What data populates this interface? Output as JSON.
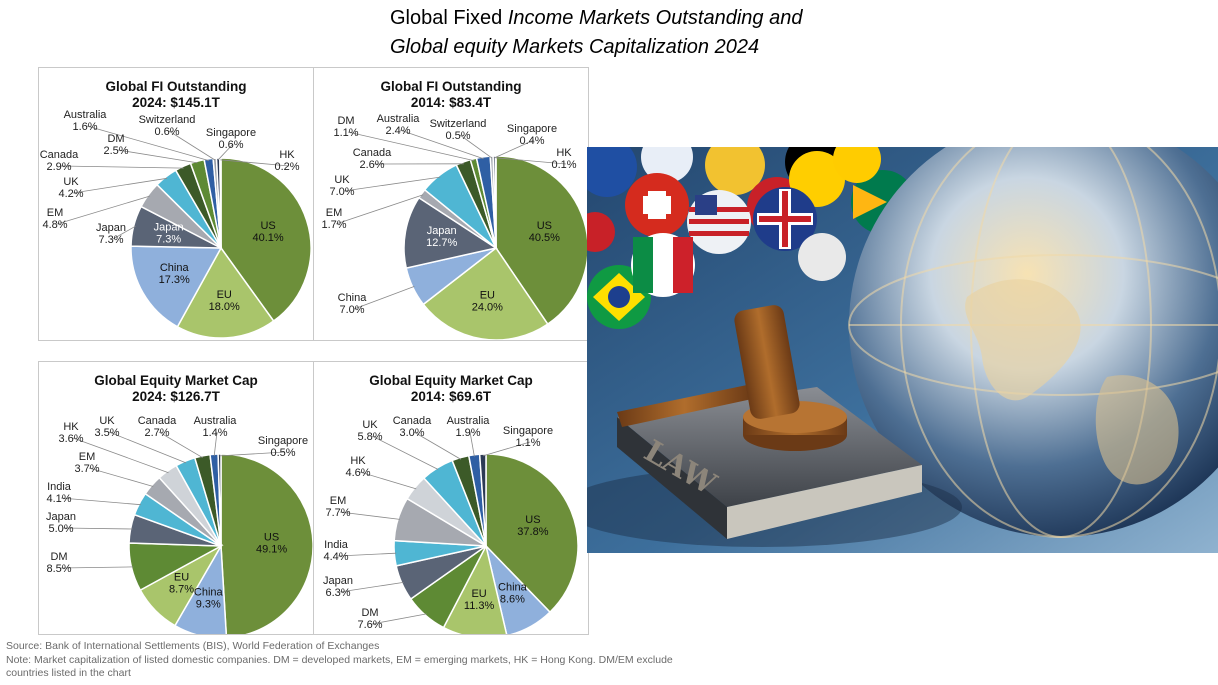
{
  "page_title": {
    "line1_plain": "Global Fixed ",
    "line1_italic": "Income Markets Outstanding and",
    "line2_italic": "Global equity Markets Capitalization 2024"
  },
  "colors": {
    "US": "#6d8f3a",
    "EU": "#a9c56b",
    "China": "#8fb0dc",
    "Japan": "#5a6476",
    "EM": "#a6a9b0",
    "UK": "#4fb6d3",
    "Canada": "#3c5a28",
    "DM": "#5e8a34",
    "Australia": "#2f5fa4",
    "Switzerland": "#9aa0a8",
    "Singapore": "#2c3a55",
    "HK": "#cfd3d8",
    "India": "#4fb6d3"
  },
  "chart_data": [
    {
      "type": "pie",
      "title": "Global FI Outstanding",
      "subtitle": "2024: $145.1T",
      "slices": [
        {
          "label": "US",
          "value": 40.1,
          "display": "40.1%"
        },
        {
          "label": "EU",
          "value": 18.0,
          "display": "18.0%"
        },
        {
          "label": "China",
          "value": 17.3,
          "display": "17.3%"
        },
        {
          "label": "Japan",
          "value": 7.3,
          "display": "7.3%"
        },
        {
          "label": "EM",
          "value": 4.8,
          "display": "4.8%"
        },
        {
          "label": "UK",
          "value": 4.2,
          "display": "4.2%"
        },
        {
          "label": "Canada",
          "value": 2.9,
          "display": "2.9%"
        },
        {
          "label": "DM",
          "value": 2.5,
          "display": "2.5%"
        },
        {
          "label": "Australia",
          "value": 1.6,
          "display": "1.6%"
        },
        {
          "label": "Switzerland",
          "value": 0.6,
          "display": "0.6%"
        },
        {
          "label": "Singapore",
          "value": 0.6,
          "display": "0.6%"
        },
        {
          "label": "HK",
          "value": 0.2,
          "display": "0.2%"
        }
      ]
    },
    {
      "type": "pie",
      "title": "Global FI Outstanding",
      "subtitle": "2014: $83.4T",
      "slices": [
        {
          "label": "US",
          "value": 40.5,
          "display": "40.5%"
        },
        {
          "label": "EU",
          "value": 24.0,
          "display": "24.0%"
        },
        {
          "label": "China",
          "value": 7.0,
          "display": "7.0%"
        },
        {
          "label": "Japan",
          "value": 12.7,
          "display": "12.7%"
        },
        {
          "label": "EM",
          "value": 1.7,
          "display": "1.7%"
        },
        {
          "label": "UK",
          "value": 7.0,
          "display": "7.0%"
        },
        {
          "label": "Canada",
          "value": 2.6,
          "display": "2.6%"
        },
        {
          "label": "DM",
          "value": 1.1,
          "display": "1.1%"
        },
        {
          "label": "Australia",
          "value": 2.4,
          "display": "2.4%"
        },
        {
          "label": "Switzerland",
          "value": 0.5,
          "display": "0.5%"
        },
        {
          "label": "Singapore",
          "value": 0.4,
          "display": "0.4%"
        },
        {
          "label": "HK",
          "value": 0.1,
          "display": "0.1%"
        }
      ]
    },
    {
      "type": "pie",
      "title": "Global Equity Market Cap",
      "subtitle": "2024: $126.7T",
      "slices": [
        {
          "label": "US",
          "value": 49.1,
          "display": "49.1%"
        },
        {
          "label": "China",
          "value": 9.3,
          "display": "9.3%"
        },
        {
          "label": "EU",
          "value": 8.7,
          "display": "8.7%"
        },
        {
          "label": "DM",
          "value": 8.5,
          "display": "8.5%"
        },
        {
          "label": "Japan",
          "value": 5.0,
          "display": "5.0%"
        },
        {
          "label": "India",
          "value": 4.1,
          "display": "4.1%"
        },
        {
          "label": "EM",
          "value": 3.7,
          "display": "3.7%"
        },
        {
          "label": "HK",
          "value": 3.6,
          "display": "3.6%"
        },
        {
          "label": "UK",
          "value": 3.5,
          "display": "3.5%"
        },
        {
          "label": "Canada",
          "value": 2.7,
          "display": "2.7%"
        },
        {
          "label": "Australia",
          "value": 1.4,
          "display": "1.4%"
        },
        {
          "label": "Singapore",
          "value": 0.5,
          "display": "0.5%"
        }
      ]
    },
    {
      "type": "pie",
      "title": "Global Equity Market Cap",
      "subtitle": "2014: $69.6T",
      "slices": [
        {
          "label": "US",
          "value": 37.8,
          "display": "37.8%"
        },
        {
          "label": "China",
          "value": 8.6,
          "display": "8.6%"
        },
        {
          "label": "EU",
          "value": 11.3,
          "display": "11.3%"
        },
        {
          "label": "DM",
          "value": 7.6,
          "display": "7.6%"
        },
        {
          "label": "Japan",
          "value": 6.3,
          "display": "6.3%"
        },
        {
          "label": "India",
          "value": 4.4,
          "display": "4.4%"
        },
        {
          "label": "EM",
          "value": 7.7,
          "display": "7.7%"
        },
        {
          "label": "HK",
          "value": 4.6,
          "display": "4.6%"
        },
        {
          "label": "UK",
          "value": 5.8,
          "display": "5.8%"
        },
        {
          "label": "Canada",
          "value": 3.0,
          "display": "3.0%"
        },
        {
          "label": "Australia",
          "value": 1.9,
          "display": "1.9%"
        },
        {
          "label": "Singapore",
          "value": 1.1,
          "display": "1.1%"
        }
      ]
    }
  ],
  "photo": {
    "book_label": "LAW"
  },
  "source": {
    "line1": "Source: Bank of International Settlements (BIS), World Federation of Exchanges",
    "line2": "Note: Market capitalization of listed domestic companies. DM = developed markets, EM = emerging markets, HK = Hong Kong. DM/EM exclude",
    "line3": "countries listed in the chart"
  }
}
